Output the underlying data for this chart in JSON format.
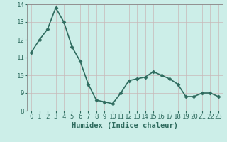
{
  "x": [
    0,
    1,
    2,
    3,
    4,
    5,
    6,
    7,
    8,
    9,
    10,
    11,
    12,
    13,
    14,
    15,
    16,
    17,
    18,
    19,
    20,
    21,
    22,
    23
  ],
  "y": [
    11.3,
    12.0,
    12.6,
    13.8,
    13.0,
    11.6,
    10.8,
    9.5,
    8.6,
    8.5,
    8.4,
    9.0,
    9.7,
    9.8,
    9.9,
    10.2,
    10.0,
    9.8,
    9.5,
    8.8,
    8.8,
    9.0,
    9.0,
    8.8
  ],
  "line_color": "#2e6b5e",
  "marker": "D",
  "marker_size": 2.5,
  "bg_color": "#cceee8",
  "grid_color": "#aaddcc",
  "xlabel": "Humidex (Indice chaleur)",
  "ylim": [
    8,
    14
  ],
  "xlim": [
    -0.5,
    23.5
  ],
  "yticks": [
    8,
    9,
    10,
    11,
    12,
    13,
    14
  ],
  "xticks": [
    0,
    1,
    2,
    3,
    4,
    5,
    6,
    7,
    8,
    9,
    10,
    11,
    12,
    13,
    14,
    15,
    16,
    17,
    18,
    19,
    20,
    21,
    22,
    23
  ],
  "xlabel_fontsize": 7.5,
  "tick_fontsize": 6.5,
  "spine_color": "#888888",
  "line_width": 1.2
}
